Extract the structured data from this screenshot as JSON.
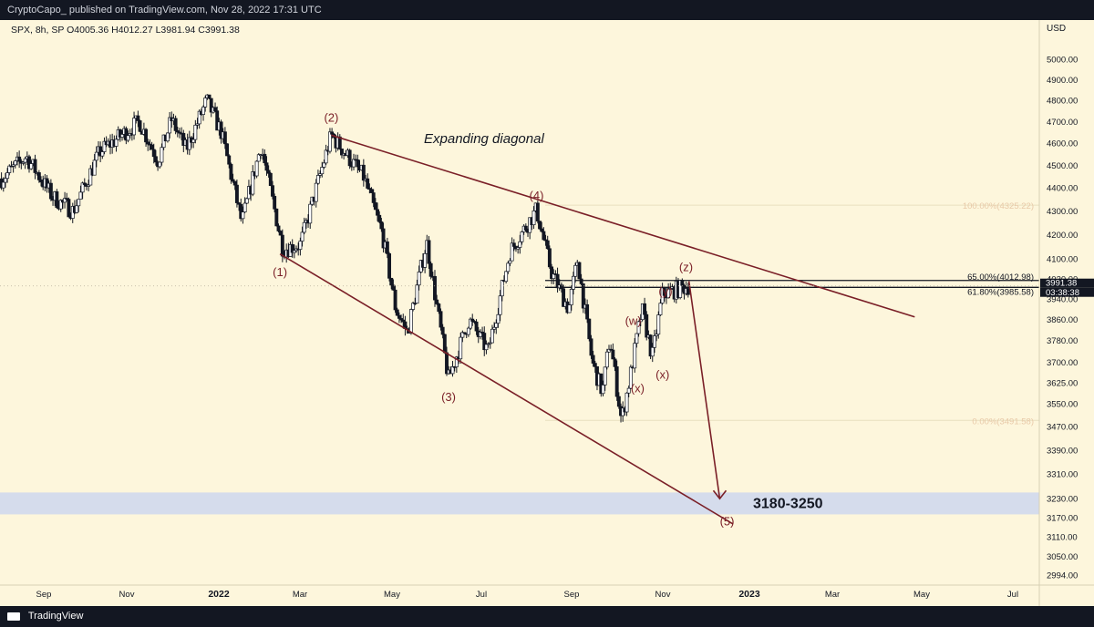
{
  "header": {
    "published_text": "CryptoCapo_ published on TradingView.com, Nov 28, 2022 17:31 UTC"
  },
  "footer": {
    "brand": "TradingView",
    "logo_icon": "tradingview-logo-icon"
  },
  "colors": {
    "background": "#fdf6dc",
    "up_candle": "#ffffff",
    "down_candle": "#131722",
    "trendline": "#7a1f27",
    "wave_label": "#7a1f27",
    "target_zone": "#d5dcec",
    "fib_line": "#e8dfbf"
  },
  "chart_data": {
    "type": "candlestick",
    "symbol_line": "SPX, 8h, SP",
    "ohlc_readout": {
      "open": "O4005.36",
      "high": "H4012.27",
      "low": "L3981.94",
      "close": "C3991.38"
    },
    "currency_label": "USD",
    "y_scale": "log",
    "ylim": [
      2940,
      5060
    ],
    "x_tick_labels": [
      "Sep",
      "Nov",
      "2022",
      "Mar",
      "May",
      "Jul",
      "Sep",
      "Nov",
      "2023",
      "Mar",
      "May",
      "Jul"
    ],
    "y_tick_labels": [
      "5000.00",
      "4900.00",
      "4800.00",
      "4700.00",
      "4600.00",
      "4500.00",
      "4400.00",
      "4300.00",
      "4200.00",
      "4100.00",
      "4020.00",
      "3940.00",
      "3860.00",
      "3780.00",
      "3700.00",
      "3625.00",
      "3550.00",
      "3470.00",
      "3390.00",
      "3310.00",
      "3230.00",
      "3170.00",
      "3110.00",
      "3050.00",
      "2994.00"
    ],
    "y_tick_values": [
      5000,
      4900,
      4800,
      4700,
      4600,
      4500,
      4400,
      4300,
      4200,
      4100,
      4020,
      3940,
      3860,
      3780,
      3700,
      3625,
      3550,
      3470,
      3390,
      3310,
      3230,
      3170,
      3110,
      3050,
      2994
    ],
    "last_price_label": "3991.38",
    "countdown_label": "03:38:38",
    "price_path": [
      [
        "2021-08-16",
        4440
      ],
      [
        "2021-09-02",
        4540
      ],
      [
        "2021-09-20",
        4360
      ],
      [
        "2021-10-04",
        4300
      ],
      [
        "2021-10-22",
        4560
      ],
      [
        "2021-11-18",
        4700
      ],
      [
        "2021-12-01",
        4520
      ],
      [
        "2021-12-10",
        4710
      ],
      [
        "2021-12-20",
        4570
      ],
      [
        "2022-01-03",
        4800
      ],
      [
        "2022-01-13",
        4650
      ],
      [
        "2022-01-27",
        4250
      ],
      [
        "2022-02-09",
        4590
      ],
      [
        "2022-02-24",
        4140
      ],
      [
        "2022-03-08",
        4160
      ],
      [
        "2022-03-29",
        4637
      ],
      [
        "2022-04-20",
        4450
      ],
      [
        "2022-05-03",
        4200
      ],
      [
        "2022-05-12",
        3900
      ],
      [
        "2022-05-20",
        3810
      ],
      [
        "2022-06-02",
        4170
      ],
      [
        "2022-06-17",
        3637
      ],
      [
        "2022-07-01",
        3860
      ],
      [
        "2022-07-14",
        3740
      ],
      [
        "2022-07-29",
        4130
      ],
      [
        "2022-08-16",
        4305
      ],
      [
        "2022-08-26",
        4050
      ],
      [
        "2022-09-07",
        3900
      ],
      [
        "2022-09-13",
        4100
      ],
      [
        "2022-09-23",
        3700
      ],
      [
        "2022-09-30",
        3590
      ],
      [
        "2022-10-05",
        3790
      ],
      [
        "2022-10-13",
        3491
      ],
      [
        "2022-10-19",
        3650
      ],
      [
        "2022-10-27",
        3900
      ],
      [
        "2022-11-03",
        3720
      ],
      [
        "2022-11-10",
        3960
      ],
      [
        "2022-11-28",
        3991
      ]
    ],
    "annotations": {
      "pattern_title": "Expanding diagonal",
      "wave_labels": [
        {
          "text": "(1)",
          "date": "2022-02-22",
          "price": 4030
        },
        {
          "text": "(2)",
          "date": "2022-03-29",
          "price": 4700
        },
        {
          "text": "(3)",
          "date": "2022-06-17",
          "price": 3560
        },
        {
          "text": "(4)",
          "date": "2022-08-16",
          "price": 4350
        },
        {
          "text": "(5)",
          "date": "2022-12-24",
          "price": 3145
        },
        {
          "text": "(w)",
          "date": "2022-10-21",
          "price": 3840
        },
        {
          "text": "(x)",
          "date": "2022-10-24",
          "price": 3590
        },
        {
          "text": "(x)",
          "date": "2022-11-10",
          "price": 3640
        },
        {
          "text": "(y)",
          "date": "2022-11-12",
          "price": 3955
        },
        {
          "text": "(z)",
          "date": "2022-11-26",
          "price": 4050
        }
      ],
      "target_zone_label": "3180-3250",
      "target_zone": [
        3180,
        3250
      ],
      "fib_levels": [
        {
          "label": "100.00%(4325.22)",
          "price": 4325.22
        },
        {
          "label": "65.00%(4012.98)",
          "price": 4012.98
        },
        {
          "label": "61.80%(3985.58)",
          "price": 3985.58
        },
        {
          "label": "0.00%(3491.58)",
          "price": 3491.58
        }
      ]
    },
    "trendlines": [
      {
        "name": "upper",
        "points": [
          [
            "2022-03-29",
            4637
          ],
          [
            "2023-05-01",
            3870
          ]
        ]
      },
      {
        "name": "lower",
        "points": [
          [
            "2022-02-22",
            4120
          ],
          [
            "2022-12-28",
            3150
          ]
        ]
      },
      {
        "name": "projection-arrow",
        "points": [
          [
            "2022-11-28",
            4010
          ],
          [
            "2022-12-19",
            3230
          ]
        ]
      }
    ]
  }
}
